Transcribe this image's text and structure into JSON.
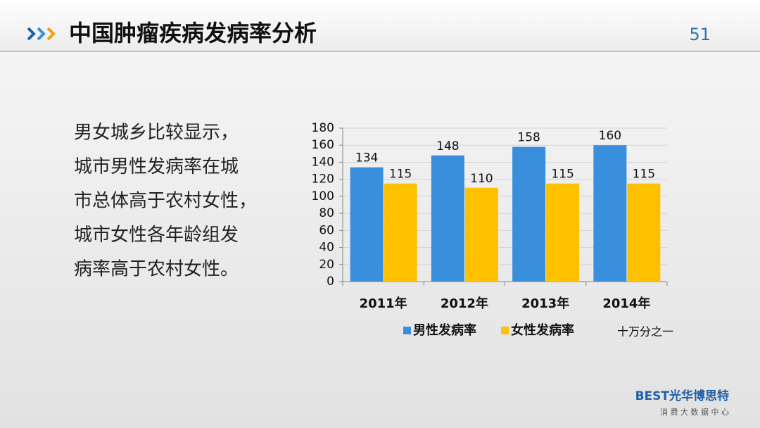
{
  "slide": {
    "title": "中国肿瘤疾病发病率分析",
    "page_number": "51",
    "text_lines": [
      "男女城乡比较显示，",
      "城市男性发病率在城",
      "市总体高于农村女性，",
      "城市女性各年龄组发",
      "病率高于农村女性。"
    ],
    "logo": {
      "brand": "BEST光华博思特",
      "subtitle": "消 费 大 数 据 中 心"
    }
  },
  "chart_data": {
    "type": "bar",
    "unit_note": "十万分之一",
    "categories": [
      "2011年",
      "2012年",
      "2013年",
      "2014年"
    ],
    "series": [
      {
        "name": "男性发病率",
        "color": "#3a8fdc",
        "values": [
          134,
          148,
          158,
          160
        ]
      },
      {
        "name": "女性发病率",
        "color": "#ffc000",
        "values": [
          115,
          110,
          115,
          115
        ]
      }
    ],
    "ylim": [
      0,
      180
    ],
    "yticks": [
      0,
      20,
      40,
      60,
      80,
      100,
      120,
      140,
      160,
      180
    ],
    "grid": true
  }
}
